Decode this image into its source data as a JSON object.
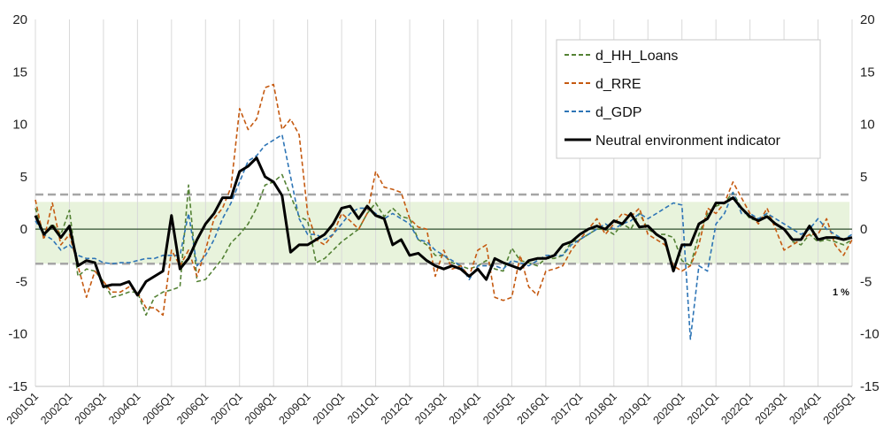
{
  "chart_data": {
    "type": "line",
    "title": "",
    "xlabel": "",
    "ylabel": "",
    "ylim": [
      -15,
      20
    ],
    "yticks": [
      -15,
      -10,
      -5,
      0,
      5,
      10,
      15,
      20
    ],
    "y2ticks": [
      -15,
      -10,
      -5,
      0,
      5,
      10,
      15,
      20
    ],
    "x_start": "2001Q1",
    "x_end": "2025Q1",
    "x_ticks": [
      "2001Q1",
      "2002Q1",
      "2003Q1",
      "2004Q1",
      "2005Q1",
      "2006Q1",
      "2007Q1",
      "2008Q1",
      "2009Q1",
      "2010Q1",
      "2011Q1",
      "2012Q1",
      "2013Q1",
      "2014Q1",
      "2015Q1",
      "2016Q1",
      "2017Q1",
      "2018Q1",
      "2019Q1",
      "2020Q1",
      "2021Q1",
      "2022Q1",
      "2023Q1",
      "2024Q1",
      "2025Q1"
    ],
    "band": {
      "low": -3.3,
      "high": 2.6,
      "color": "#e8f3dc"
    },
    "threshold_lines": [
      3.3,
      -3.3
    ],
    "threshold_color": "#a6a6a6",
    "zero_line_color": "#2f4f2f",
    "grid": "vertical",
    "legend_position": "top-right",
    "annotation": "1 %",
    "series": [
      {
        "name": "d_HH_Loans",
        "color": "#548235",
        "style": "dashed",
        "values": [
          2.0,
          -0.5,
          0.5,
          -0.5,
          1.8,
          -4.5,
          -3.8,
          -4.0,
          -5.0,
          -6.5,
          -6.3,
          -6.0,
          -6.0,
          -8.2,
          -6.5,
          -6.0,
          -5.8,
          -5.5,
          4.2,
          -5.0,
          -4.8,
          -3.8,
          -2.8,
          -1.3,
          -0.5,
          0.5,
          2.0,
          4.2,
          4.5,
          5.2,
          3.2,
          1.2,
          0.8,
          -3.2,
          -2.8,
          -2.0,
          -1.2,
          -0.6,
          0.0,
          1.5,
          2.5,
          1.2,
          2.0,
          1.2,
          1.0,
          -1.0,
          -1.5,
          -2.5,
          -2.5,
          -3.2,
          -3.5,
          -3.8,
          -3.5,
          -3.0,
          -3.8,
          -4.0,
          -1.8,
          -3.0,
          -3.2,
          -3.5,
          -2.8,
          -2.8,
          -2.5,
          -1.2,
          -1.0,
          -0.5,
          0.0,
          0.0,
          -0.5,
          0.5,
          0.0,
          1.5,
          0.0,
          -0.5,
          -0.5,
          -0.8,
          -3.0,
          -3.5,
          -0.5,
          1.5,
          2.2,
          2.5,
          3.5,
          2.0,
          1.0,
          0.8,
          1.5,
          0.5,
          0.0,
          -1.2,
          -1.5,
          -0.5,
          -1.2,
          -1.0,
          -1.2,
          -1.5,
          -1.0
        ]
      },
      {
        "name": "d_RRE",
        "color": "#c55a11",
        "style": "dashed",
        "values": [
          2.8,
          -1.0,
          2.5,
          -1.5,
          -0.5,
          -3.5,
          -6.5,
          -4.0,
          -5.0,
          -6.0,
          -6.0,
          -5.5,
          -6.0,
          -7.5,
          -7.5,
          -8.2,
          -2.0,
          -3.5,
          -2.0,
          -4.5,
          -2.0,
          1.0,
          2.0,
          4.0,
          11.5,
          9.5,
          10.5,
          13.5,
          13.8,
          9.5,
          10.5,
          9.0,
          1.5,
          -1.0,
          -1.5,
          -0.5,
          1.5,
          0.8,
          0.0,
          1.5,
          5.5,
          4.0,
          3.8,
          3.5,
          1.0,
          0.2,
          0.0,
          -4.5,
          -2.0,
          -3.8,
          -3.5,
          -4.5,
          -2.0,
          -1.5,
          -6.5,
          -6.8,
          -6.5,
          -2.5,
          -5.5,
          -6.3,
          -4.0,
          -3.8,
          -3.5,
          -2.0,
          -1.0,
          0.0,
          1.0,
          -0.5,
          0.5,
          1.5,
          1.2,
          2.0,
          -0.5,
          -1.0,
          -1.5,
          -3.5,
          -4.0,
          -3.5,
          -1.5,
          2.0,
          1.5,
          2.5,
          4.5,
          3.0,
          1.5,
          0.5,
          2.0,
          0.0,
          -2.0,
          -1.5,
          -1.0,
          -0.5,
          -0.5,
          1.0,
          -1.5,
          -2.5,
          -1.0
        ]
      },
      {
        "name": "d_GDP",
        "color": "#2e75b6",
        "style": "dashed",
        "values": [
          0.8,
          -0.5,
          -1.0,
          -2.0,
          -1.5,
          -2.5,
          -2.8,
          -2.8,
          -3.2,
          -3.3,
          -3.2,
          -3.2,
          -3.0,
          -2.8,
          -2.8,
          -2.5,
          -2.5,
          -2.5,
          1.5,
          -3.5,
          -2.5,
          -1.0,
          1.0,
          2.5,
          4.5,
          6.5,
          7.0,
          8.0,
          8.5,
          9.0,
          5.0,
          1.0,
          -0.5,
          -0.5,
          -1.0,
          -0.5,
          0.5,
          1.5,
          2.0,
          2.0,
          1.5,
          1.0,
          1.5,
          1.0,
          0.5,
          -1.0,
          -1.2,
          -2.0,
          -2.5,
          -3.0,
          -3.5,
          -4.8,
          -3.5,
          -3.5,
          -3.5,
          -3.8,
          -3.0,
          -3.2,
          -3.5,
          -3.0,
          -2.5,
          -2.5,
          -2.5,
          -1.5,
          -1.0,
          -0.5,
          0.0,
          0.5,
          0.0,
          0.5,
          0.8,
          1.5,
          1.0,
          1.5,
          2.0,
          2.5,
          2.3,
          -10.5,
          -3.5,
          -4.0,
          0.5,
          1.5,
          3.5,
          1.5,
          1.5,
          1.0,
          1.5,
          1.0,
          0.5,
          0.0,
          -0.5,
          0.0,
          1.0,
          0.0,
          -0.5,
          -1.0,
          -0.5
        ]
      },
      {
        "name": "Neutral environment indicator",
        "color": "#000000",
        "style": "solid",
        "values": [
          1.3,
          -0.5,
          0.3,
          -0.8,
          0.3,
          -3.5,
          -3.0,
          -3.2,
          -5.5,
          -5.3,
          -5.3,
          -5.0,
          -6.3,
          -5.0,
          -4.5,
          -4.0,
          1.3,
          -3.8,
          -2.8,
          -1.0,
          0.5,
          1.5,
          3.0,
          3.0,
          5.5,
          6.0,
          6.8,
          5.0,
          4.5,
          3.2,
          -2.2,
          -1.5,
          -1.5,
          -1.0,
          -0.5,
          0.5,
          2.0,
          2.2,
          1.0,
          2.2,
          1.3,
          1.0,
          -1.5,
          -1.0,
          -2.5,
          -2.3,
          -3.0,
          -3.5,
          -3.8,
          -3.5,
          -3.8,
          -4.5,
          -3.8,
          -4.8,
          -2.8,
          -3.2,
          -3.5,
          -3.8,
          -3.0,
          -2.8,
          -2.8,
          -2.5,
          -1.5,
          -1.2,
          -0.5,
          0.0,
          0.3,
          0.0,
          0.8,
          0.5,
          1.5,
          0.2,
          0.3,
          -0.5,
          -1.0,
          -4.0,
          -1.5,
          -1.5,
          0.5,
          1.0,
          2.5,
          2.5,
          3.0,
          2.0,
          1.2,
          0.8,
          1.2,
          0.5,
          0.0,
          -1.0,
          -1.0,
          0.3,
          -1.0,
          -0.8,
          -0.8,
          -1.0,
          -0.8
        ]
      }
    ]
  }
}
